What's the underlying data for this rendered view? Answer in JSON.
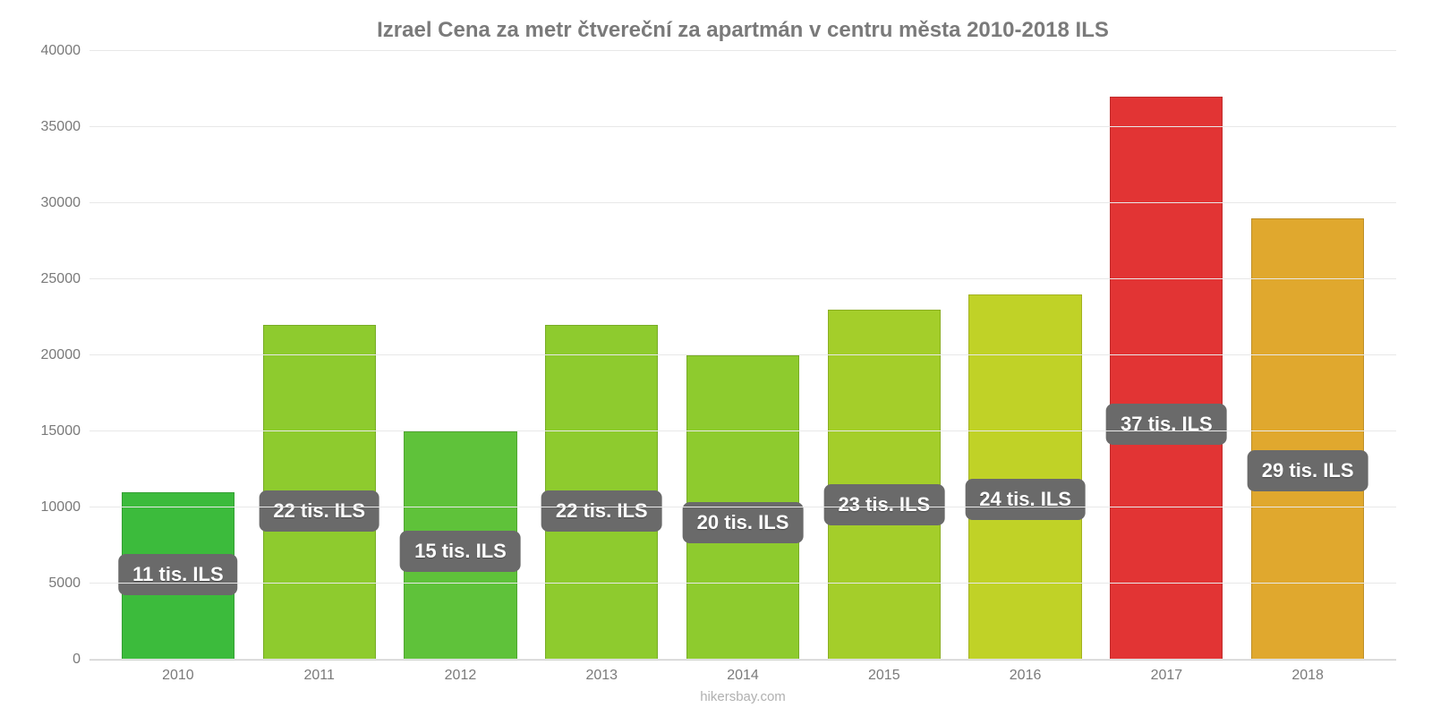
{
  "chart": {
    "type": "bar",
    "title": "Izrael Cena za metr čtvereční za apartmán v centru města 2010-2018 ILS",
    "title_fontsize": 24,
    "title_color": "#7a7a7a",
    "background_color": "#ffffff",
    "grid_color": "#e8e8e8",
    "axis_label_color": "#7a7a7a",
    "axis_label_fontsize": 16,
    "ylim": [
      0,
      40000
    ],
    "ytick_step": 5000,
    "yticks": [
      0,
      5000,
      10000,
      15000,
      20000,
      25000,
      30000,
      35000,
      40000
    ],
    "categories": [
      "2010",
      "2011",
      "2012",
      "2013",
      "2014",
      "2015",
      "2016",
      "2017",
      "2018"
    ],
    "values": [
      11000,
      22000,
      15000,
      22000,
      20000,
      23000,
      24000,
      37000,
      29000
    ],
    "bar_colors": [
      "#3cbb3c",
      "#8ecb2e",
      "#5fc23a",
      "#8ecb2e",
      "#8ecb2e",
      "#a4ce2a",
      "#c0d227",
      "#e23434",
      "#e0a82e"
    ],
    "bar_width": 0.8,
    "badges": [
      "11 tis. ILS",
      "22 tis. ILS",
      "15 tis. ILS",
      "22 tis. ILS",
      "20 tis. ILS",
      "23 tis. ILS",
      "24 tis. ILS",
      "37 tis. ILS",
      "29 tis. ILS"
    ],
    "badge_bg": "#6a6a6a",
    "badge_color": "#ffffff",
    "badge_fontsize": 22,
    "badge_radius": 8,
    "footer": "hikersbay.com",
    "footer_color": "#b0b0b0"
  }
}
